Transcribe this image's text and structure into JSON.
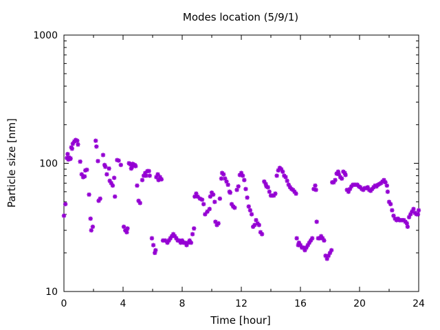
{
  "chart_data": {
    "type": "scatter",
    "title": "Modes location (5/9/1)",
    "xlabel": "Time [hour]",
    "ylabel": "Particle size [nm]",
    "xlim": [
      0,
      24
    ],
    "ylim": [
      10,
      1000
    ],
    "yscale": "log",
    "xticks": [
      "0",
      "4",
      "8",
      "12",
      "16",
      "20",
      "24"
    ],
    "yticks": [
      "10",
      "100",
      "1000"
    ],
    "grid": false,
    "legend": "none",
    "marker": "asterisk",
    "color": "#9400d3",
    "series": [
      {
        "points": [
          [
            0.0,
            39
          ],
          [
            0.1,
            48
          ],
          [
            0.2,
            110
          ],
          [
            0.25,
            118
          ],
          [
            0.3,
            107
          ],
          [
            0.35,
            111
          ],
          [
            0.4,
            108
          ],
          [
            0.45,
            109
          ],
          [
            0.5,
            133
          ],
          [
            0.55,
            130
          ],
          [
            0.6,
            142
          ],
          [
            0.7,
            148
          ],
          [
            0.8,
            152
          ],
          [
            0.9,
            150
          ],
          [
            0.95,
            140
          ],
          [
            1.1,
            103
          ],
          [
            1.2,
            82
          ],
          [
            1.3,
            78
          ],
          [
            1.4,
            79
          ],
          [
            1.45,
            88
          ],
          [
            1.55,
            89
          ],
          [
            1.7,
            57
          ],
          [
            1.8,
            37
          ],
          [
            1.85,
            30
          ],
          [
            1.95,
            32
          ],
          [
            2.15,
            150
          ],
          [
            2.2,
            135
          ],
          [
            2.3,
            104
          ],
          [
            2.35,
            51
          ],
          [
            2.45,
            53
          ],
          [
            2.65,
            116
          ],
          [
            2.75,
            97
          ],
          [
            2.8,
            94
          ],
          [
            2.9,
            82
          ],
          [
            3.05,
            91
          ],
          [
            3.1,
            73
          ],
          [
            3.2,
            70
          ],
          [
            3.3,
            67
          ],
          [
            3.4,
            77
          ],
          [
            3.45,
            55
          ],
          [
            3.6,
            106
          ],
          [
            3.7,
            105
          ],
          [
            3.85,
            97
          ],
          [
            4.05,
            32
          ],
          [
            4.15,
            30
          ],
          [
            4.25,
            29
          ],
          [
            4.3,
            31
          ],
          [
            4.4,
            100
          ],
          [
            4.5,
            98
          ],
          [
            4.55,
            91
          ],
          [
            4.6,
            93
          ],
          [
            4.65,
            99
          ],
          [
            4.7,
            97
          ],
          [
            4.8,
            97
          ],
          [
            4.85,
            95
          ],
          [
            4.95,
            67
          ],
          [
            5.05,
            51
          ],
          [
            5.15,
            49
          ],
          [
            5.3,
            74
          ],
          [
            5.4,
            80
          ],
          [
            5.5,
            84
          ],
          [
            5.55,
            80
          ],
          [
            5.65,
            87
          ],
          [
            5.75,
            87
          ],
          [
            5.8,
            80
          ],
          [
            5.95,
            26
          ],
          [
            6.05,
            23
          ],
          [
            6.15,
            20
          ],
          [
            6.2,
            21
          ],
          [
            6.25,
            78
          ],
          [
            6.35,
            82
          ],
          [
            6.4,
            74
          ],
          [
            6.5,
            78
          ],
          [
            6.6,
            75
          ],
          [
            6.7,
            25
          ],
          [
            6.85,
            25
          ],
          [
            7.0,
            24
          ],
          [
            7.1,
            25
          ],
          [
            7.2,
            26
          ],
          [
            7.3,
            27
          ],
          [
            7.4,
            28
          ],
          [
            7.5,
            27
          ],
          [
            7.6,
            26
          ],
          [
            7.7,
            25
          ],
          [
            7.8,
            25
          ],
          [
            7.9,
            24
          ],
          [
            8.0,
            25
          ],
          [
            8.1,
            24
          ],
          [
            8.2,
            24
          ],
          [
            8.3,
            23
          ],
          [
            8.4,
            24
          ],
          [
            8.5,
            25
          ],
          [
            8.6,
            24
          ],
          [
            8.7,
            28
          ],
          [
            8.8,
            31
          ],
          [
            8.85,
            55
          ],
          [
            8.95,
            58
          ],
          [
            9.05,
            55
          ],
          [
            9.2,
            53
          ],
          [
            9.35,
            52
          ],
          [
            9.45,
            48
          ],
          [
            9.55,
            40
          ],
          [
            9.7,
            42
          ],
          [
            9.85,
            44
          ],
          [
            9.9,
            55
          ],
          [
            10.0,
            59
          ],
          [
            10.1,
            57
          ],
          [
            10.2,
            50
          ],
          [
            10.25,
            35
          ],
          [
            10.35,
            33
          ],
          [
            10.45,
            34
          ],
          [
            10.55,
            53
          ],
          [
            10.65,
            76
          ],
          [
            10.7,
            84
          ],
          [
            10.8,
            82
          ],
          [
            10.9,
            76
          ],
          [
            11.0,
            72
          ],
          [
            11.1,
            68
          ],
          [
            11.2,
            60
          ],
          [
            11.25,
            59
          ],
          [
            11.35,
            48
          ],
          [
            11.45,
            46
          ],
          [
            11.55,
            45
          ],
          [
            11.7,
            62
          ],
          [
            11.8,
            66
          ],
          [
            11.9,
            81
          ],
          [
            12.0,
            84
          ],
          [
            12.1,
            80
          ],
          [
            12.2,
            74
          ],
          [
            12.3,
            63
          ],
          [
            12.4,
            54
          ],
          [
            12.5,
            46
          ],
          [
            12.6,
            43
          ],
          [
            12.7,
            40
          ],
          [
            12.8,
            32
          ],
          [
            12.9,
            33
          ],
          [
            13.0,
            36
          ],
          [
            13.1,
            34
          ],
          [
            13.2,
            33
          ],
          [
            13.3,
            29
          ],
          [
            13.4,
            28
          ],
          [
            13.55,
            72
          ],
          [
            13.65,
            69
          ],
          [
            13.7,
            66
          ],
          [
            13.8,
            65
          ],
          [
            13.9,
            60
          ],
          [
            14.0,
            56
          ],
          [
            14.1,
            56
          ],
          [
            14.2,
            56
          ],
          [
            14.3,
            58
          ],
          [
            14.4,
            80
          ],
          [
            14.5,
            88
          ],
          [
            14.6,
            92
          ],
          [
            14.7,
            90
          ],
          [
            14.8,
            86
          ],
          [
            14.9,
            80
          ],
          [
            15.0,
            78
          ],
          [
            15.1,
            73
          ],
          [
            15.2,
            68
          ],
          [
            15.3,
            65
          ],
          [
            15.4,
            63
          ],
          [
            15.5,
            62
          ],
          [
            15.6,
            60
          ],
          [
            15.7,
            58
          ],
          [
            15.75,
            26
          ],
          [
            15.85,
            23
          ],
          [
            15.9,
            24
          ],
          [
            16.0,
            23
          ],
          [
            16.1,
            22
          ],
          [
            16.2,
            22
          ],
          [
            16.3,
            21
          ],
          [
            16.4,
            22
          ],
          [
            16.5,
            23
          ],
          [
            16.6,
            24
          ],
          [
            16.7,
            25
          ],
          [
            16.8,
            26
          ],
          [
            16.9,
            63
          ],
          [
            17.0,
            67
          ],
          [
            17.05,
            62
          ],
          [
            17.1,
            35
          ],
          [
            17.2,
            26
          ],
          [
            17.3,
            26
          ],
          [
            17.4,
            27
          ],
          [
            17.5,
            26
          ],
          [
            17.6,
            25
          ],
          [
            17.7,
            19
          ],
          [
            17.8,
            18
          ],
          [
            17.9,
            19
          ],
          [
            18.0,
            20
          ],
          [
            18.1,
            21
          ],
          [
            18.15,
            71
          ],
          [
            18.25,
            71
          ],
          [
            18.35,
            74
          ],
          [
            18.45,
            83
          ],
          [
            18.55,
            86
          ],
          [
            18.6,
            82
          ],
          [
            18.7,
            78
          ],
          [
            18.8,
            76
          ],
          [
            18.9,
            86
          ],
          [
            19.0,
            84
          ],
          [
            19.05,
            81
          ],
          [
            19.15,
            62
          ],
          [
            19.25,
            60
          ],
          [
            19.35,
            63
          ],
          [
            19.45,
            66
          ],
          [
            19.55,
            68
          ],
          [
            19.65,
            68
          ],
          [
            19.75,
            68
          ],
          [
            19.85,
            68
          ],
          [
            19.95,
            66
          ],
          [
            20.05,
            65
          ],
          [
            20.15,
            63
          ],
          [
            20.25,
            62
          ],
          [
            20.35,
            64
          ],
          [
            20.45,
            64
          ],
          [
            20.55,
            65
          ],
          [
            20.65,
            62
          ],
          [
            20.75,
            61
          ],
          [
            20.85,
            63
          ],
          [
            20.95,
            65
          ],
          [
            21.05,
            67
          ],
          [
            21.15,
            66
          ],
          [
            21.25,
            68
          ],
          [
            21.35,
            69
          ],
          [
            21.45,
            70
          ],
          [
            21.55,
            72
          ],
          [
            21.65,
            74
          ],
          [
            21.75,
            71
          ],
          [
            21.85,
            67
          ],
          [
            21.9,
            60
          ],
          [
            22.0,
            50
          ],
          [
            22.1,
            48
          ],
          [
            22.2,
            43
          ],
          [
            22.3,
            39
          ],
          [
            22.4,
            37
          ],
          [
            22.5,
            36
          ],
          [
            22.6,
            37
          ],
          [
            22.7,
            36
          ],
          [
            22.8,
            36
          ],
          [
            22.9,
            36
          ],
          [
            23.0,
            36
          ],
          [
            23.1,
            35
          ],
          [
            23.2,
            34
          ],
          [
            23.25,
            32
          ],
          [
            23.35,
            38
          ],
          [
            23.45,
            40
          ],
          [
            23.55,
            42
          ],
          [
            23.65,
            44
          ],
          [
            23.75,
            41
          ],
          [
            23.85,
            40
          ],
          [
            23.95,
            40
          ],
          [
            24.0,
            43
          ]
        ]
      }
    ]
  }
}
